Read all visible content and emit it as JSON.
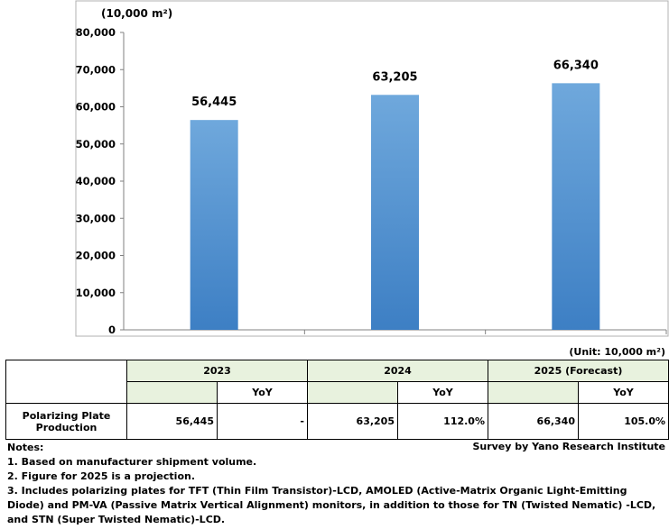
{
  "chart_data": {
    "type": "bar",
    "unit_label": "(10,000 m²)",
    "categories": [
      "2023",
      "2024",
      "2025 (Forecast)"
    ],
    "values": [
      56445,
      63205,
      66340
    ],
    "value_labels": [
      "56,445",
      "63,205",
      "66,340"
    ],
    "ylim": [
      0,
      80000
    ],
    "yticks": [
      "0",
      "10,000",
      "20,000",
      "30,000",
      "40,000",
      "50,000",
      "60,000",
      "70,000",
      "80,000"
    ],
    "grid": false,
    "bar_color": "#5b9bd5"
  },
  "table": {
    "unit_note": "(Unit: 10,000 m²)",
    "years": [
      "2023",
      "2024",
      "2025 (Forecast)"
    ],
    "yoy_label": "YoY",
    "row_label": "Polarizing Plate Production",
    "values": [
      "56,445",
      "63,205",
      "66,340"
    ],
    "yoy": [
      "-",
      "112.0%",
      "105.0%"
    ]
  },
  "source": "Survey by Yano Research Institute",
  "notes": {
    "title": "Notes:",
    "items": [
      "1. Based on manufacturer shipment volume.",
      "2. Figure for 2025 is a projection.",
      "3. Includes polarizing plates for TFT (Thin Film Transistor)-LCD, AMOLED (Active-Matrix Organic Light-Emitting Diode) and PM-VA (Passive Matrix Vertical Alignment) monitors, in addition to those for TN (Twisted Nematic) -LCD, and STN (Super Twisted Nematic)-LCD."
    ]
  }
}
